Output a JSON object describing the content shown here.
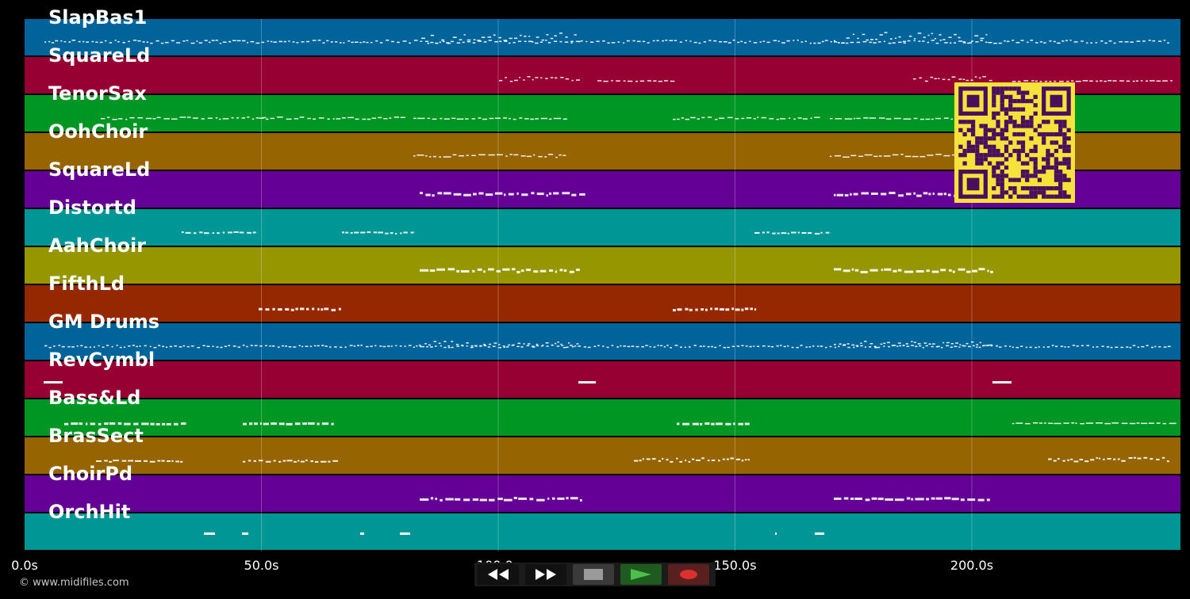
{
  "tracks": [
    {
      "name": "SlapBas1",
      "color": "#00649b"
    },
    {
      "name": "SquareLd",
      "color": "#960032"
    },
    {
      "name": "TenorSax",
      "color": "#009623"
    },
    {
      "name": "OohChoir",
      "color": "#966400"
    },
    {
      "name": "SquareLd",
      "color": "#640096"
    },
    {
      "name": "Distortd",
      "color": "#009696"
    },
    {
      "name": "AahChoir",
      "color": "#969600"
    },
    {
      "name": "FifthLd",
      "color": "#962800"
    },
    {
      "name": "GM Drums",
      "color": "#00649b"
    },
    {
      "name": "RevCymbl",
      "color": "#960032"
    },
    {
      "name": "Bass&Ld",
      "color": "#009623"
    },
    {
      "name": "BrasSect",
      "color": "#966400"
    },
    {
      "name": "ChoirPd",
      "color": "#640096"
    },
    {
      "name": "OrchHit",
      "color": "#009696"
    }
  ],
  "timeline": {
    "ticks": [
      "0.0s",
      "50.0s",
      "100.0s",
      "150.0s",
      "200.0s"
    ],
    "tick_values": [
      0,
      50,
      100,
      150,
      200
    ],
    "max_seconds": 244
  },
  "copyright": "© www.midifiles.com",
  "transport": {
    "rewind": "rewind-icon",
    "fast_forward": "fast-forward-icon",
    "stop": "stop-icon",
    "play": "play-icon",
    "record": "record-icon"
  },
  "qr_code": {
    "fg": "#4a0f5c",
    "bg": "#f5e23a"
  }
}
